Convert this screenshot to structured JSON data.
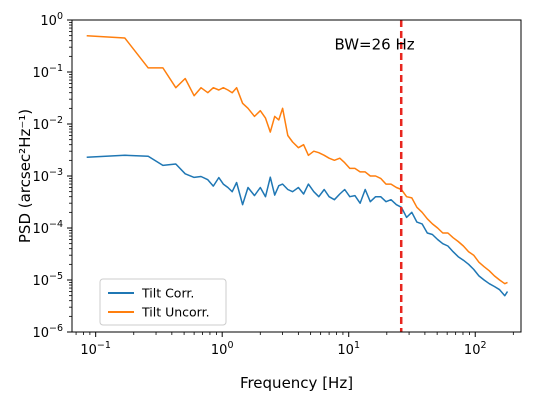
{
  "chart_data": {
    "type": "line",
    "xlabel": "Frequency [Hz]",
    "ylabel": "PSD (arcsec²Hz⁻¹)",
    "xscale": "log",
    "yscale": "log",
    "xlim": [
      0.065,
      230
    ],
    "ylim": [
      1e-06,
      1
    ],
    "grid": false,
    "legend_position": "lower-left",
    "x_tick_labels": [
      {
        "value": 0.1,
        "base": "10",
        "exp": "−1"
      },
      {
        "value": 1,
        "base": "10",
        "exp": "0"
      },
      {
        "value": 10,
        "base": "10",
        "exp": "1"
      },
      {
        "value": 100,
        "base": "10",
        "exp": "2"
      }
    ],
    "y_tick_labels": [
      {
        "value": 1e-06,
        "base": "10",
        "exp": "−6"
      },
      {
        "value": 1e-05,
        "base": "10",
        "exp": "−5"
      },
      {
        "value": 0.0001,
        "base": "10",
        "exp": "−4"
      },
      {
        "value": 0.001,
        "base": "10",
        "exp": "−3"
      },
      {
        "value": 0.01,
        "base": "10",
        "exp": "−2"
      },
      {
        "value": 0.1,
        "base": "10",
        "exp": "−1"
      },
      {
        "value": 1,
        "base": "10",
        "exp": "0"
      }
    ],
    "series": [
      {
        "name": "Tilt Corr.",
        "color": "#1f77b4",
        "x": [
          0.085,
          0.17,
          0.26,
          0.34,
          0.43,
          0.51,
          0.6,
          0.68,
          0.77,
          0.85,
          0.94,
          1.02,
          1.11,
          1.2,
          1.3,
          1.45,
          1.6,
          1.8,
          2.0,
          2.2,
          2.4,
          2.6,
          2.8,
          3.0,
          3.3,
          3.6,
          4.0,
          4.4,
          4.8,
          5.3,
          5.8,
          6.4,
          7.0,
          7.7,
          8.5,
          9.3,
          10.2,
          11.2,
          12.3,
          13.5,
          14.8,
          16.3,
          17.9,
          19.7,
          21.6,
          23.8,
          26.1,
          28.7,
          31.5,
          34.6,
          38.0,
          41.8,
          45.9,
          50.4,
          55.4,
          60.8,
          66.8,
          73.4,
          80.6,
          88.6,
          97.3,
          106.9,
          117.5,
          129.1,
          141.8,
          155.8,
          171.2,
          180
        ],
        "values": [
          0.0023,
          0.0025,
          0.0024,
          0.0016,
          0.0017,
          0.0011,
          0.00094,
          0.00098,
          0.00085,
          0.00064,
          0.00093,
          0.0007,
          0.0006,
          0.0005,
          0.00075,
          0.00028,
          0.0006,
          0.00042,
          0.0006,
          0.0004,
          0.00095,
          0.00043,
          0.00065,
          0.0007,
          0.00055,
          0.0005,
          0.0006,
          0.00045,
          0.0007,
          0.0005,
          0.0004,
          0.00055,
          0.0004,
          0.00035,
          0.00045,
          0.00055,
          0.0004,
          0.00042,
          0.0003,
          0.00055,
          0.00032,
          0.0004,
          0.0004,
          0.00032,
          0.00035,
          0.00028,
          0.00025,
          0.00016,
          0.0002,
          0.00013,
          0.00012,
          8e-05,
          7.5e-05,
          6e-05,
          5e-05,
          4.5e-05,
          3.5e-05,
          2.8e-05,
          2.4e-05,
          2e-05,
          1.6e-05,
          1.2e-05,
          1e-05,
          8.5e-06,
          7.5e-06,
          6.5e-06,
          5e-06,
          6e-06
        ]
      },
      {
        "name": "Tilt Uncorr.",
        "color": "#ff7f0e",
        "x": [
          0.085,
          0.17,
          0.26,
          0.34,
          0.43,
          0.51,
          0.6,
          0.68,
          0.77,
          0.85,
          0.94,
          1.02,
          1.11,
          1.2,
          1.3,
          1.45,
          1.6,
          1.8,
          2.0,
          2.2,
          2.4,
          2.6,
          2.8,
          3.0,
          3.3,
          3.6,
          4.0,
          4.4,
          4.8,
          5.3,
          5.8,
          6.4,
          7.0,
          7.7,
          8.5,
          9.3,
          10.2,
          11.2,
          12.3,
          13.5,
          14.8,
          16.3,
          17.9,
          19.7,
          21.6,
          23.8,
          26.1,
          28.7,
          31.5,
          34.6,
          38.0,
          41.8,
          45.9,
          50.4,
          55.4,
          60.8,
          66.8,
          73.4,
          80.6,
          88.6,
          97.3,
          106.9,
          117.5,
          129.1,
          141.8,
          155.8,
          171.2,
          180
        ],
        "values": [
          0.5,
          0.45,
          0.12,
          0.12,
          0.05,
          0.075,
          0.035,
          0.05,
          0.04,
          0.05,
          0.045,
          0.05,
          0.045,
          0.04,
          0.05,
          0.025,
          0.02,
          0.014,
          0.018,
          0.013,
          0.007,
          0.014,
          0.012,
          0.02,
          0.006,
          0.0045,
          0.0035,
          0.004,
          0.0025,
          0.003,
          0.0028,
          0.0025,
          0.0022,
          0.002,
          0.0022,
          0.0018,
          0.0014,
          0.0014,
          0.0012,
          0.0012,
          0.001,
          0.001,
          0.0009,
          0.0007,
          0.0007,
          0.0006,
          0.00055,
          0.0004,
          0.00038,
          0.00025,
          0.0002,
          0.00015,
          0.00012,
          0.0001,
          8e-05,
          8e-05,
          6.5e-05,
          5.5e-05,
          4.5e-05,
          3.5e-05,
          3e-05,
          2.2e-05,
          1.8e-05,
          1.5e-05,
          1.2e-05,
          1e-05,
          8.5e-06,
          9e-06
        ]
      }
    ],
    "vline": {
      "x": 26,
      "color": "#e8261f",
      "style": "dashed"
    },
    "annotations": [
      {
        "text": "BW=26 Hz",
        "x": 16,
        "y": 0.27
      }
    ]
  }
}
